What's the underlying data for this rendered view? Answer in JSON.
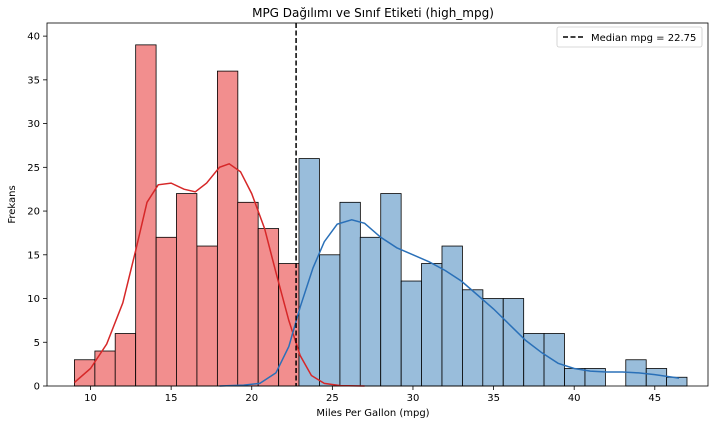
{
  "chart_data": {
    "type": "bar",
    "title": "MPG Dağılımı ve Sınıf Etiketi (high_mpg)",
    "xlabel": "Miles Per Gallon (mpg)",
    "ylabel": "Frekans",
    "xlim": [
      7.3,
      48.3
    ],
    "ylim": [
      0,
      41.5
    ],
    "xticks": [
      10,
      15,
      20,
      25,
      30,
      35,
      40,
      45
    ],
    "yticks": [
      0,
      5,
      10,
      15,
      20,
      25,
      30,
      35,
      40
    ],
    "bin_width": 1.2667,
    "series": [
      {
        "color_fill": "#f28e8e",
        "color_line": "#d62728",
        "bins": [
          {
            "x0": 9.0,
            "count": 3
          },
          {
            "x0": 10.27,
            "count": 4
          },
          {
            "x0": 11.53,
            "count": 6
          },
          {
            "x0": 12.8,
            "count": 39
          },
          {
            "x0": 14.07,
            "count": 17
          },
          {
            "x0": 15.33,
            "count": 22
          },
          {
            "x0": 16.6,
            "count": 16
          },
          {
            "x0": 17.87,
            "count": 36
          },
          {
            "x0": 19.13,
            "count": 21
          },
          {
            "x0": 20.4,
            "count": 18
          },
          {
            "x0": 21.67,
            "count": 14
          }
        ],
        "kde": [
          [
            9.0,
            0.4
          ],
          [
            10.0,
            2.0
          ],
          [
            11.0,
            4.8
          ],
          [
            12.0,
            9.5
          ],
          [
            12.8,
            15.5
          ],
          [
            13.5,
            21.0
          ],
          [
            14.2,
            23.0
          ],
          [
            15.0,
            23.2
          ],
          [
            15.8,
            22.5
          ],
          [
            16.5,
            22.2
          ],
          [
            17.2,
            23.2
          ],
          [
            18.0,
            25.0
          ],
          [
            18.6,
            25.4
          ],
          [
            19.3,
            24.5
          ],
          [
            20.0,
            22.0
          ],
          [
            20.8,
            18.0
          ],
          [
            21.5,
            13.0
          ],
          [
            22.3,
            7.5
          ],
          [
            23.0,
            3.5
          ],
          [
            23.7,
            1.2
          ],
          [
            24.5,
            0.3
          ],
          [
            25.5,
            0.05
          ],
          [
            27,
            0
          ]
        ]
      },
      {
        "color_fill": "#99bddb",
        "color_line": "#2a70b8",
        "bins": [
          {
            "x0": 22.93,
            "count": 26
          },
          {
            "x0": 24.2,
            "count": 15
          },
          {
            "x0": 25.47,
            "count": 21
          },
          {
            "x0": 26.73,
            "count": 17
          },
          {
            "x0": 28.0,
            "count": 22
          },
          {
            "x0": 29.27,
            "count": 12
          },
          {
            "x0": 30.53,
            "count": 14
          },
          {
            "x0": 31.8,
            "count": 16
          },
          {
            "x0": 33.07,
            "count": 11
          },
          {
            "x0": 34.33,
            "count": 10
          },
          {
            "x0": 35.6,
            "count": 10
          },
          {
            "x0": 36.87,
            "count": 6
          },
          {
            "x0": 38.13,
            "count": 6
          },
          {
            "x0": 39.4,
            "count": 2
          },
          {
            "x0": 40.67,
            "count": 2
          },
          {
            "x0": 41.93,
            "count": 0
          },
          {
            "x0": 43.2,
            "count": 3
          },
          {
            "x0": 44.47,
            "count": 2
          },
          {
            "x0": 45.73,
            "count": 1
          }
        ],
        "kde": [
          [
            18.0,
            0
          ],
          [
            19.5,
            0.1
          ],
          [
            20.5,
            0.3
          ],
          [
            21.5,
            1.5
          ],
          [
            22.3,
            4.5
          ],
          [
            23.0,
            9.0
          ],
          [
            23.8,
            13.5
          ],
          [
            24.5,
            16.5
          ],
          [
            25.3,
            18.5
          ],
          [
            26.2,
            19.0
          ],
          [
            27.0,
            18.6
          ],
          [
            28.0,
            17.0
          ],
          [
            29.0,
            15.8
          ],
          [
            30.0,
            15.0
          ],
          [
            31.0,
            14.2
          ],
          [
            32.0,
            13.2
          ],
          [
            33.0,
            12.0
          ],
          [
            34.0,
            10.4
          ],
          [
            35.0,
            8.8
          ],
          [
            36.0,
            7.0
          ],
          [
            37.0,
            5.2
          ],
          [
            38.0,
            3.8
          ],
          [
            39.0,
            2.6
          ],
          [
            40.0,
            2.0
          ],
          [
            41.0,
            1.7
          ],
          [
            42.0,
            1.6
          ],
          [
            43.0,
            1.6
          ],
          [
            44.0,
            1.5
          ],
          [
            45.0,
            1.3
          ],
          [
            46.5,
            0.9
          ]
        ]
      }
    ],
    "median_line": {
      "x": 22.75,
      "label": "Median mpg = 22.75"
    },
    "legend_position": "top-right",
    "grid": false
  }
}
